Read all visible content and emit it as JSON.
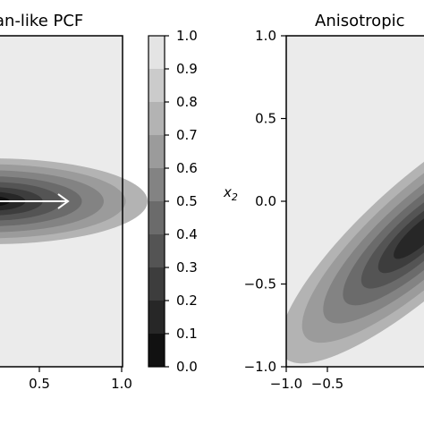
{
  "chart_data": [
    {
      "type": "contour",
      "title": "an-like PCF",
      "x_ticks": [
        "0.5",
        "1.0"
      ],
      "x_tick_values": [
        0.5,
        1.0
      ],
      "anisotropic_axis_arrow": true
    },
    {
      "type": "colorbar",
      "levels": [
        0.0,
        0.1,
        0.2,
        0.3,
        0.4,
        0.5,
        0.6,
        0.7,
        0.8,
        0.9,
        1.0
      ],
      "tick_labels": [
        "0.0",
        "0.1",
        "0.2",
        "0.3",
        "0.4",
        "0.5",
        "0.6",
        "0.7",
        "0.8",
        "0.9",
        "1.0"
      ],
      "colors": [
        "#111111",
        "#272727",
        "#3d3d3d",
        "#545454",
        "#6b6b6b",
        "#838383",
        "#9b9b9b",
        "#b3b3b3",
        "#cbcbcb",
        "#e4e4e4"
      ]
    },
    {
      "type": "contour",
      "title": "Anisotropic",
      "ylabel": "x",
      "ylabel_subscript": "2",
      "x_ticks": [
        "−1.0",
        "−0.5"
      ],
      "x_tick_values": [
        -1.0,
        -0.5
      ],
      "y_ticks": [
        "1.0",
        "0.5",
        "0.0",
        "−0.5",
        "−1.0"
      ],
      "y_tick_values": [
        1.0,
        0.5,
        0.0,
        -0.5,
        -1.0
      ],
      "xlim": [
        -1.0,
        1.0
      ],
      "ylim": [
        -1.0,
        1.0
      ]
    }
  ],
  "background": "#ebebeb"
}
